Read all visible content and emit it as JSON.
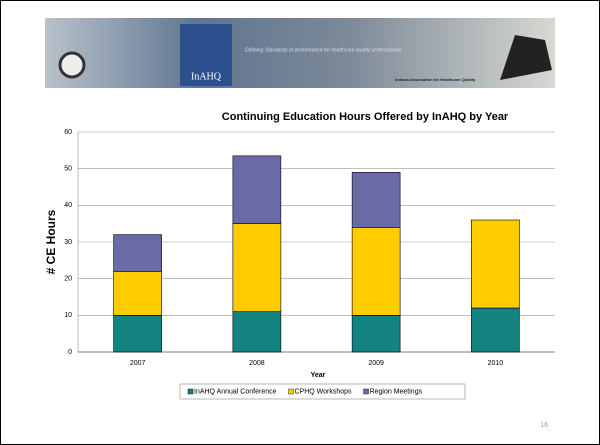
{
  "banner": {
    "logo": "InAHQ",
    "tagline": "Defining Standards of performance for healthcare quality professionals",
    "org": "Indiana Association for Healthcare Quality"
  },
  "chart_data": {
    "type": "stacked-bar",
    "title": "Continuing Education Hours Offered by InAHQ by Year",
    "x_label": "Year",
    "y_label": "# CE Hours",
    "categories": [
      "2007",
      "2008",
      "2009",
      "2010"
    ],
    "series": [
      {
        "name": "InAHQ Annual Conference",
        "color": "#138380",
        "values": [
          10,
          11,
          10,
          12
        ]
      },
      {
        "name": "CPHQ Workshops",
        "color": "#ffcc00",
        "values": [
          12,
          24,
          24,
          24
        ]
      },
      {
        "name": "Region Meetings",
        "color": "#6a6aa6",
        "values": [
          10,
          18.5,
          15,
          0
        ]
      }
    ],
    "ylim": [
      0,
      60
    ],
    "yticks": [
      0,
      10,
      20,
      30,
      40,
      50,
      60
    ],
    "grid": true,
    "legend": "bottom"
  },
  "page_number": "16"
}
